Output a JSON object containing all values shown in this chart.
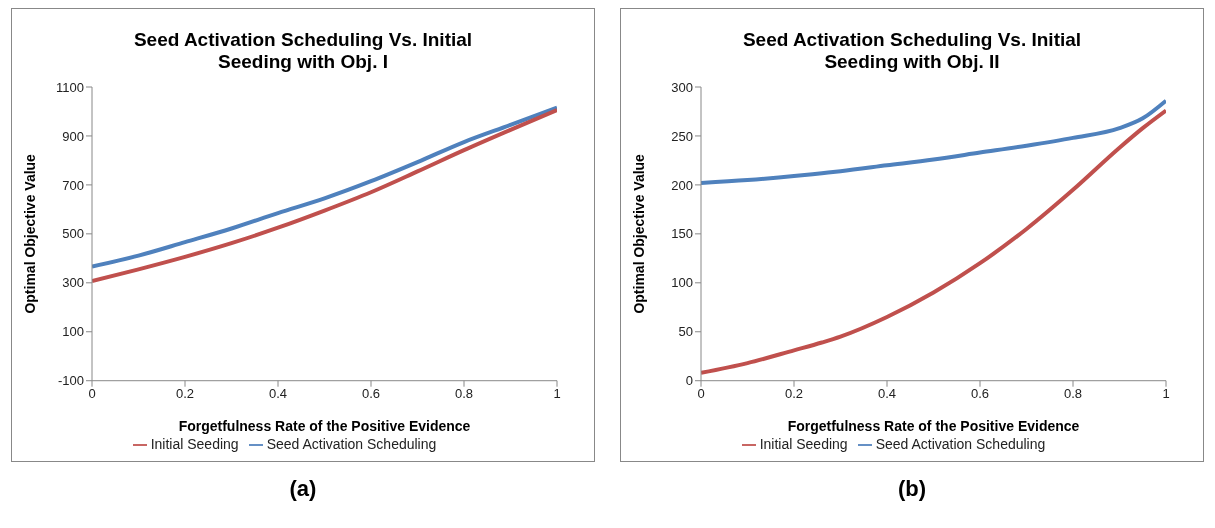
{
  "chart_data": [
    {
      "type": "line",
      "title": "Seed Activation Scheduling Vs. Initial Seeding with Obj. I",
      "xlabel": "Forgetfulness Rate of the Positive Evidence",
      "ylabel": "Optimal Objective Value",
      "x": [
        0,
        0.1,
        0.2,
        0.3,
        0.4,
        0.5,
        0.6,
        0.7,
        0.8,
        0.9,
        1
      ],
      "series": [
        {
          "name": "Seed Activation Scheduling",
          "color": "#4f81bd",
          "values": [
            366,
            411,
            466,
            522,
            585,
            645,
            715,
            793,
            875,
            945,
            1016
          ]
        },
        {
          "name": "Initial Seeding",
          "color": "#c0504d",
          "values": [
            307,
            355,
            406,
            462,
            525,
            595,
            670,
            755,
            842,
            925,
            1006
          ]
        }
      ],
      "xlim": [
        0,
        1
      ],
      "xticks": [
        0,
        0.2,
        0.4,
        0.6,
        0.8,
        1
      ],
      "ylim": [
        -100,
        1100
      ],
      "yticks": [
        -100,
        100,
        300,
        500,
        700,
        900,
        1100
      ],
      "grid": false,
      "legend": "bottom",
      "marker": "none",
      "annotations": [
        "(a)"
      ]
    },
    {
      "type": "line",
      "title": "Seed Activation Scheduling Vs. Initial Seeding with Obj. II",
      "xlabel": "Forgetfulness Rate of the Positive Evidence",
      "ylabel": "Optimal Objective Value",
      "x": [
        0,
        0.1,
        0.2,
        0.26,
        0.3,
        0.4,
        0.5,
        0.6,
        0.7,
        0.8,
        0.9,
        0.95,
        1
      ],
      "series": [
        {
          "name": "Seed Activation Scheduling",
          "color": "#4f81bd",
          "values": [
            202,
            205,
            209,
            212,
            214,
            220,
            226,
            233,
            240,
            248,
            258,
            268,
            286
          ]
        },
        {
          "name": "Initial Seeding",
          "color": "#c0504d",
          "values": [
            8,
            18,
            31,
            39,
            45,
            65,
            90,
            120,
            155,
            195,
            238,
            258,
            276
          ]
        }
      ],
      "xlim": [
        0,
        1
      ],
      "xticks": [
        0,
        0.2,
        0.4,
        0.6,
        0.8,
        1
      ],
      "ylim": [
        0,
        300
      ],
      "yticks": [
        0,
        50,
        100,
        150,
        200,
        250,
        300
      ],
      "grid": false,
      "legend": "bottom",
      "marker": "none",
      "annotations": [
        "(b)"
      ]
    }
  ]
}
